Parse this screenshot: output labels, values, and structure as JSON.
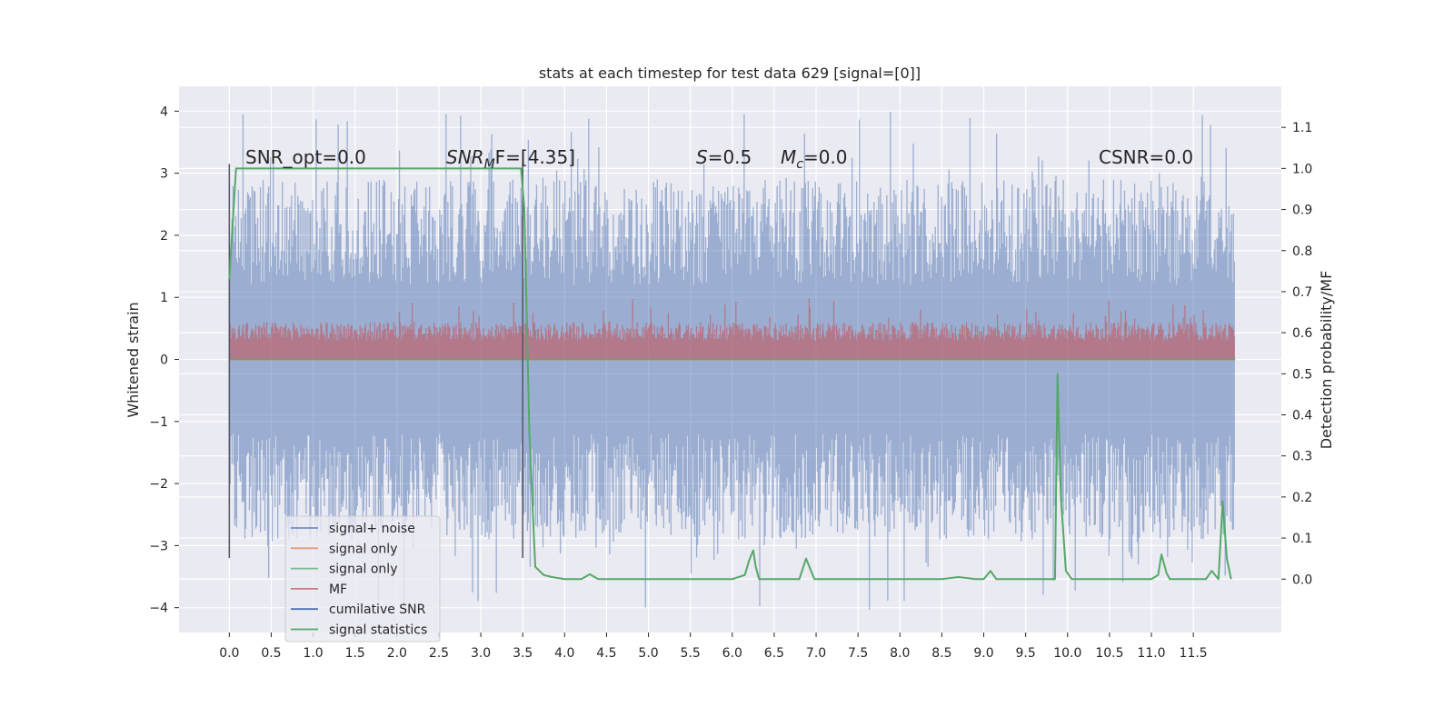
{
  "chart_data": {
    "type": "line",
    "title": "stats at each timestep for test data 629 [signal=[0]]",
    "xlabel": "",
    "ylabel": "Whitened strain",
    "y2label": "Detection probability/MF",
    "xlim": [
      -0.6,
      12.55
    ],
    "ylim": [
      -4.4,
      4.4
    ],
    "y2lim": [
      -0.13,
      1.2
    ],
    "x_ticks": [
      "0.0",
      "0.5",
      "1.0",
      "1.5",
      "2.0",
      "2.5",
      "3.0",
      "3.5",
      "4.0",
      "4.5",
      "5.0",
      "5.5",
      "6.0",
      "6.5",
      "7.0",
      "7.5",
      "8.0",
      "8.5",
      "9.0",
      "9.5",
      "10.0",
      "10.5",
      "11.0",
      "11.5"
    ],
    "y_ticks": [
      "4",
      "3",
      "2",
      "1",
      "0",
      "−1",
      "−2",
      "−3",
      "−4"
    ],
    "y2_ticks": [
      "1.1",
      "1.0",
      "0.9",
      "0.8",
      "0.7",
      "0.6",
      "0.5",
      "0.4",
      "0.3",
      "0.2",
      "0.1",
      "0.0"
    ],
    "grid": true,
    "legend_placement": "lower-left",
    "annotations": {
      "snr_opt": "SNR_opt=0.0",
      "snr_mf_sym": "SNR",
      "snr_mf_sub": "M",
      "snr_mf_rest": "F=[4.35]",
      "s_sym": "S",
      "s_rest": "=0.5",
      "mc_sym": "M",
      "mc_sub": "c",
      "mc_rest": "=0.0",
      "csnr": "CSNR=0.0"
    },
    "series": [
      {
        "name": "signal+ noise",
        "color": "#4C72B0",
        "envelope": {
          "x": [
            0.0,
            12.0
          ],
          "upper_typical": 2.3,
          "lower_typical": -2.3,
          "max": 4.0,
          "min": -4.05
        }
      },
      {
        "name": "signal only",
        "color": "#DD8452",
        "values_note": "flat 0"
      },
      {
        "name": "signal only",
        "color": "#55A868",
        "values_note": "flat 0"
      },
      {
        "name": "MF",
        "color": "#C44E52",
        "envelope": {
          "x": [
            0.0,
            12.0
          ],
          "upper_typical": 0.6,
          "lower_typical": 0.0
        }
      },
      {
        "name": "cumilative SNR",
        "color": "#4C72B0"
      },
      {
        "name": "signal statistics",
        "color": "#55A868",
        "x": [
          0.0,
          0.05,
          0.08,
          0.12,
          0.2,
          0.5,
          1.0,
          1.5,
          2.0,
          2.5,
          3.0,
          3.3,
          3.48,
          3.52,
          3.58,
          3.65,
          3.75,
          3.85,
          4.0,
          4.2,
          4.3,
          4.4,
          4.6,
          5.0,
          5.5,
          6.0,
          6.15,
          6.2,
          6.25,
          6.28,
          6.32,
          6.5,
          6.8,
          6.88,
          6.92,
          6.98,
          7.1,
          7.5,
          8.0,
          8.5,
          8.7,
          8.9,
          9.0,
          9.08,
          9.15,
          9.2,
          9.3,
          9.5,
          9.7,
          9.85,
          9.88,
          9.92,
          9.98,
          10.05,
          10.2,
          10.5,
          11.0,
          11.08,
          11.12,
          11.18,
          11.22,
          11.3,
          11.5,
          11.6,
          11.65,
          11.72,
          11.8,
          11.85,
          11.9,
          11.95
        ],
        "values": [
          0.73,
          0.9,
          1.0,
          1.0,
          1.0,
          1.0,
          1.0,
          1.0,
          1.0,
          1.0,
          1.0,
          1.0,
          1.0,
          0.9,
          0.35,
          0.03,
          0.01,
          0.005,
          0.0,
          0.0,
          0.012,
          0.0,
          0.0,
          0.0,
          0.0,
          0.0,
          0.01,
          0.045,
          0.07,
          0.03,
          0.0,
          0.0,
          0.0,
          0.05,
          0.03,
          0.0,
          0.0,
          0.0,
          0.0,
          0.0,
          0.005,
          0.0,
          0.0,
          0.02,
          0.0,
          0.0,
          0.0,
          0.0,
          0.0,
          0.0,
          0.5,
          0.2,
          0.02,
          0.0,
          0.0,
          0.0,
          0.0,
          0.01,
          0.06,
          0.015,
          0.0,
          0.0,
          0.0,
          0.0,
          0.0,
          0.02,
          0.0,
          0.19,
          0.05,
          0.0
        ]
      }
    ],
    "vertical_lines_x": [
      0.0,
      3.5
    ]
  }
}
